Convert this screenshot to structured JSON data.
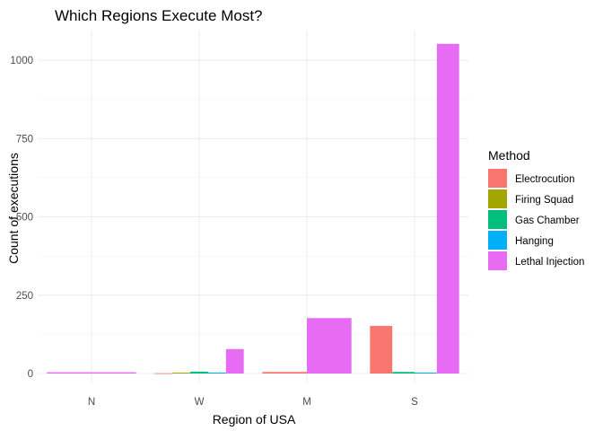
{
  "chart_data": {
    "type": "bar",
    "title": "Which Regions Execute Most?",
    "xlabel": "Region of USA",
    "ylabel": "Count of executions",
    "categories": [
      "N",
      "W",
      "M",
      "S"
    ],
    "ylim": [
      0,
      1090
    ],
    "yticks": [
      0,
      250,
      500,
      750,
      1000
    ],
    "legend_title": "Method",
    "legend_position": "right",
    "grid": true,
    "series": [
      {
        "name": "Electrocution",
        "color": "#F8766D",
        "values": [
          0,
          1,
          5,
          152
        ]
      },
      {
        "name": "Firing Squad",
        "color": "#A3A500",
        "values": [
          0,
          3,
          0,
          0
        ]
      },
      {
        "name": "Gas Chamber",
        "color": "#00BF7D",
        "values": [
          0,
          6,
          0,
          5
        ]
      },
      {
        "name": "Hanging",
        "color": "#00B0F6",
        "values": [
          0,
          3,
          0,
          3
        ]
      },
      {
        "name": "Lethal Injection",
        "color": "#E76BF3",
        "values": [
          4,
          78,
          177,
          1052
        ]
      }
    ]
  }
}
